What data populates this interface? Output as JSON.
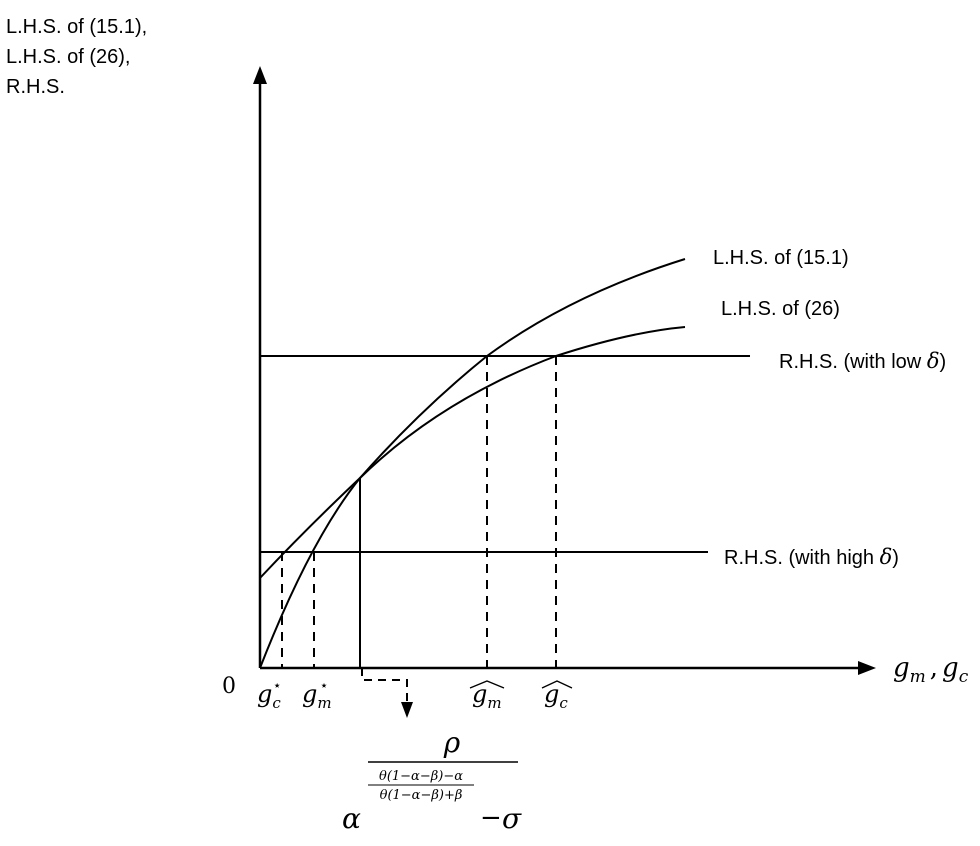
{
  "y_axis_label": [
    "L.H.S. of (15.1),",
    "L.H.S. of (26),",
    "R.H.S."
  ],
  "origin_label": "0",
  "x_axis_label": {
    "g": "g",
    "m": "m",
    "sep": ",",
    "c": "c"
  },
  "curves": {
    "lhs_15_1": "L.H.S. of (15.1)",
    "lhs_26": "L.H.S. of (26)",
    "rhs_low_prefix": "R.H.S. (with low ",
    "rhs_high_prefix": "R.H.S. (with high ",
    "delta": "δ",
    "close_paren": ")"
  },
  "ticks": {
    "g": "g",
    "c": "c",
    "m": "m",
    "star": "⋆"
  },
  "intersection_formula": {
    "numerator": "ρ",
    "base": "α",
    "exp_numerator": "θ(1−α−β)−α",
    "exp_denominator": "θ(1−α−β)+β",
    "minus": "−",
    "sigma": "σ"
  },
  "colors": {
    "ink": "#000000",
    "background": "#ffffff"
  }
}
